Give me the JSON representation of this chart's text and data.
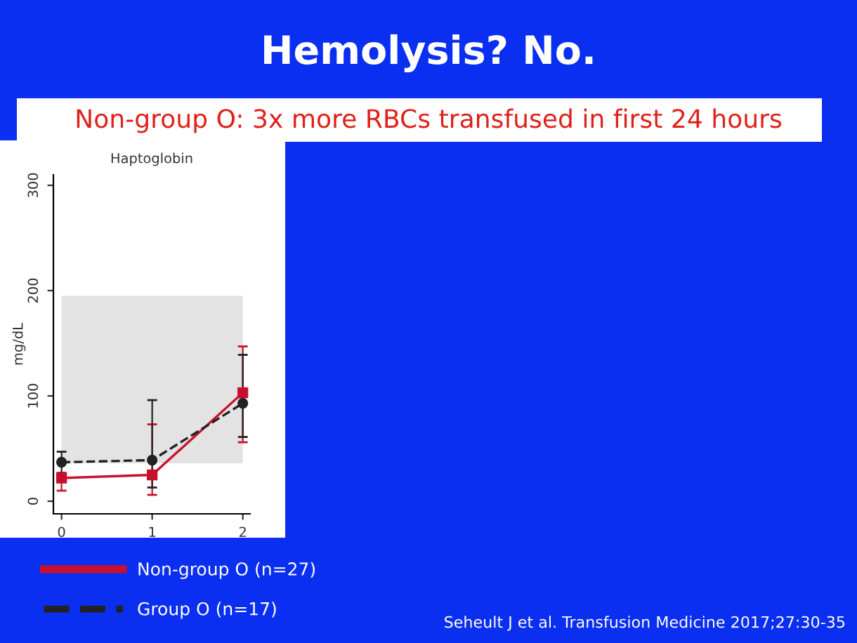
{
  "chart_data": {
    "type": "line",
    "title": "Hemolysis? No.",
    "subtitle": "Non-group O: 3x more RBCs transfused in first 24 hours",
    "ylabel": "mg/dL",
    "annotations": [
      "Haptoglobin",
      "Seheult J et al. Transfusion Medicine 2017;27:30-35"
    ],
    "x": [
      0,
      1,
      2
    ],
    "xlim": [
      -0.09,
      2.08
    ],
    "xticks": [
      0,
      1,
      2
    ],
    "ylim": [
      -12,
      310
    ],
    "yticks": [
      0,
      100,
      200,
      300
    ],
    "series": [
      {
        "name": "Non-group O (n=27)",
        "color": "#c8102e",
        "values": [
          22,
          25,
          103
        ],
        "errors": [
          [
            10,
            27
          ],
          [
            6,
            73
          ],
          [
            56,
            147
          ]
        ],
        "marker": "square",
        "line_style": "solid"
      },
      {
        "name": "Group O (n=17)",
        "color": "#222222",
        "values": [
          37,
          39,
          93
        ],
        "errors": [
          [
            26,
            47
          ],
          [
            13,
            96
          ],
          [
            61,
            139
          ]
        ],
        "marker": "circle",
        "line_style": "dashed"
      }
    ],
    "bands": [
      {
        "axis": "y",
        "from": 36,
        "to": 195,
        "color": "#e3e3e3"
      }
    ],
    "grid": false,
    "legend": "bottom"
  }
}
